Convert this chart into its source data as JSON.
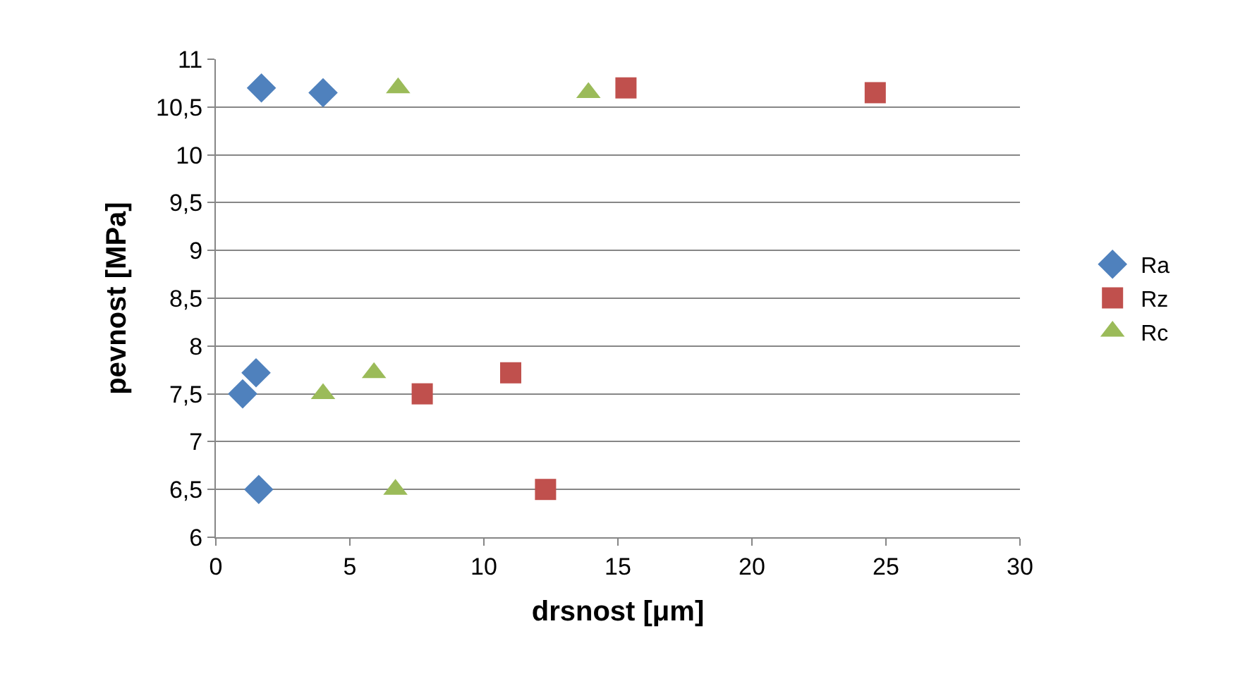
{
  "chart_data": {
    "type": "scatter",
    "xlabel": "drsnost [μm]",
    "ylabel": "pevnost [MPa]",
    "xlim": [
      0,
      30
    ],
    "xticks": [
      0,
      5,
      10,
      15,
      20,
      25,
      30
    ],
    "ylim": [
      6,
      11
    ],
    "yticks": [
      6,
      {
        "value": 6.5,
        "label": "6,5"
      },
      7,
      {
        "value": 7.5,
        "label": "7,5"
      },
      8,
      {
        "value": 8.5,
        "label": "8,5"
      },
      9,
      {
        "value": 9.5,
        "label": "9,5"
      },
      10,
      {
        "value": 10.5,
        "label": "10,5"
      },
      11
    ],
    "grid": "y",
    "legend": "right",
    "series": [
      {
        "name": "Ra",
        "color": "#4f81bd",
        "marker": "diamond",
        "x": [
          1.7,
          4.0,
          1.5,
          1.0,
          1.6
        ],
        "values": [
          10.7,
          10.65,
          7.72,
          7.5,
          6.5
        ]
      },
      {
        "name": "Rz",
        "color": "#c0504d",
        "marker": "square",
        "x": [
          15.3,
          24.6,
          11.0,
          7.7,
          12.3
        ],
        "values": [
          10.7,
          10.65,
          7.72,
          7.5,
          6.5
        ]
      },
      {
        "name": "Rc",
        "color": "#9bbb59",
        "marker": "triangle",
        "x": [
          6.8,
          13.9,
          5.9,
          4.0,
          6.7
        ],
        "values": [
          10.7,
          10.65,
          7.72,
          7.5,
          6.5
        ]
      }
    ]
  }
}
